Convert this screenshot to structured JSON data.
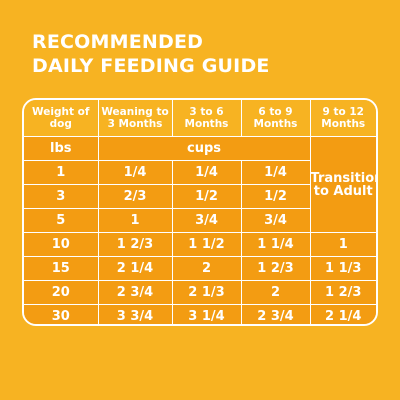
{
  "title": {
    "line1": "RECOMMENDED",
    "line2": "DAILY FEEDING GUIDE"
  },
  "table": {
    "headers": [
      "Weight of dog",
      "Weaning to 3 Months",
      "3 to 6 Months",
      "6 to 9 Months",
      "9 to 12 Months"
    ],
    "units": {
      "weight": "lbs",
      "amount": "cups"
    },
    "transition_text": "Transition to Adult",
    "rows": [
      {
        "weight": "1",
        "c1": "1/4",
        "c2": "1/4",
        "c3": "1/4",
        "c4": ""
      },
      {
        "weight": "3",
        "c1": "2/3",
        "c2": "1/2",
        "c3": "1/2",
        "c4": ""
      },
      {
        "weight": "5",
        "c1": "1",
        "c2": "3/4",
        "c3": "3/4",
        "c4": ""
      },
      {
        "weight": "10",
        "c1": "1 2/3",
        "c2": "1 1/2",
        "c3": "1 1/4",
        "c4": "1"
      },
      {
        "weight": "15",
        "c1": "2 1/4",
        "c2": "2",
        "c3": "1 2/3",
        "c4": "1 1/3"
      },
      {
        "weight": "20",
        "c1": "2 3/4",
        "c2": "2 1/3",
        "c3": "2",
        "c4": "1 2/3"
      },
      {
        "weight": "30",
        "c1": "3 3/4",
        "c2": "3 1/4",
        "c3": "2 3/4",
        "c4": "2 1/4"
      }
    ]
  },
  "colors": {
    "background": "#F7B322",
    "cell": "#F39C12",
    "text": "#FFFFFF"
  }
}
